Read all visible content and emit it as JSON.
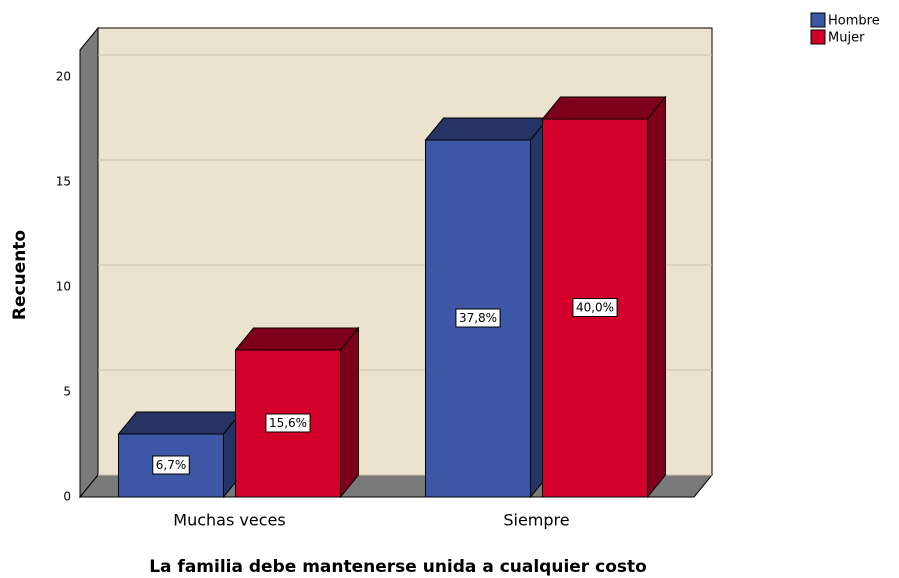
{
  "chart_data": {
    "type": "bar3d",
    "x_label": "La familia debe mantenerse unida a cualquier costo",
    "y_label": "Recuento",
    "categories": [
      "Muchas veces",
      "Siempre"
    ],
    "series": [
      {
        "name": "Hombre",
        "color": "#3d56a6",
        "values": [
          3,
          17
        ],
        "percent_labels": [
          "6,7%",
          "37,8%"
        ]
      },
      {
        "name": "Mujer",
        "color": "#d2002b",
        "values": [
          7,
          18
        ],
        "percent_labels": [
          "15,6%",
          "40,0%"
        ]
      }
    ],
    "ylim": [
      0,
      20
    ],
    "yticks": [
      0,
      5,
      10,
      15,
      20
    ],
    "grid": true,
    "legend": "top-right"
  }
}
